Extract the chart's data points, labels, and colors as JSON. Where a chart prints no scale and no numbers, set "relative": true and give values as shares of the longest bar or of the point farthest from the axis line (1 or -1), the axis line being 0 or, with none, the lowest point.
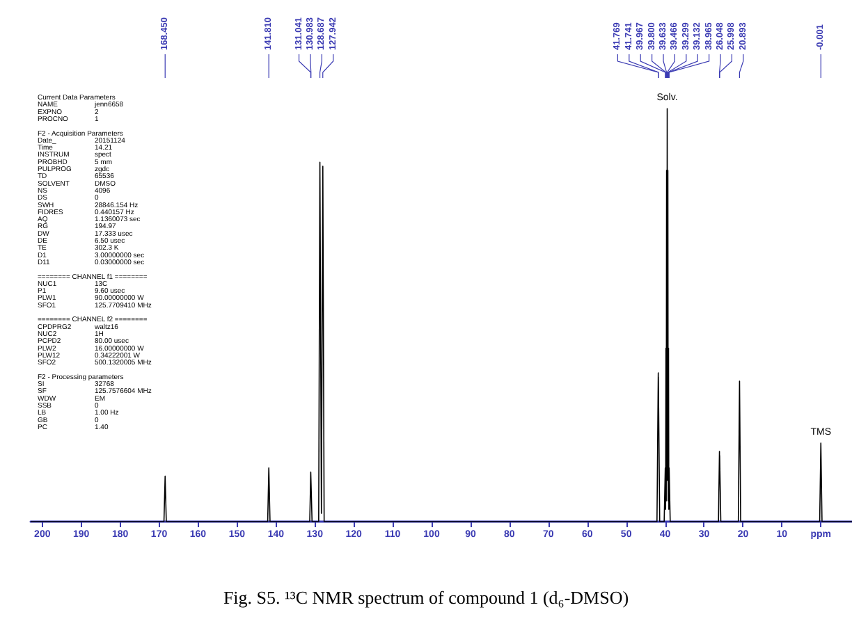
{
  "chart_data": {
    "type": "line",
    "title": "Fig. S5. ¹³C NMR spectrum of compound 1 (d₆-DMSO)",
    "relative": true,
    "color": "#000000",
    "grid": false,
    "marker": "none",
    "tick_labels": "x",
    "xlim": [
      203,
      -8
    ],
    "xticks": [
      200,
      190,
      180,
      170,
      160,
      150,
      140,
      130,
      120,
      110,
      100,
      90,
      80,
      70,
      60,
      50,
      40,
      30,
      20,
      10,
      {
        "value": 0,
        "label": "ppm"
      }
    ],
    "x": [
      203,
      168.75,
      168.45,
      168.15,
      142.1,
      141.81,
      141.5,
      131.3,
      131.04,
      130.98,
      130.7,
      129.0,
      128.69,
      128.3,
      127.94,
      127.6,
      42.1,
      41.77,
      41.755,
      41.74,
      41.4,
      40.25,
      39.97,
      39.88,
      39.8,
      39.72,
      39.63,
      39.55,
      39.47,
      39.38,
      39.3,
      39.22,
      39.13,
      39.05,
      38.97,
      38.7,
      26.3,
      26.05,
      26.02,
      26.0,
      25.7,
      21.2,
      20.89,
      20.6,
      0.3,
      0,
      -0.3,
      -8
    ],
    "values": [
      0,
      0,
      0.11,
      0,
      0,
      0.13,
      0,
      0,
      0.12,
      0.12,
      0,
      0,
      0.87,
      0.02,
      0.86,
      0,
      0,
      0.36,
      0.3,
      0.35,
      0,
      0,
      0.13,
      0.03,
      0.42,
      0.05,
      0.85,
      0.1,
      1,
      0.1,
      0.85,
      0.05,
      0.42,
      0.03,
      0.13,
      0,
      0,
      0.17,
      0.1,
      0.16,
      0,
      0,
      0.34,
      0,
      0,
      0.19,
      0,
      0
    ],
    "annotations": [
      "Current Data Parameters\nNAME  jenn6658\nEXPNO  2\nPROCNO  1\n\nF2 - Acquisition Parameters\nDate_  20151124\nTime  14.21\nINSTRUM  spect\nPROBHD  5 mm\nPULPROG  zgdc\nTD  65536\nSOLVENT  DMSO\nNS  4096\nDS  0\nSWH  28846.154 Hz\nFIDRES  0.440157 Hz\nAQ  1.1360073 sec\nRG  194.97\nDW  17.333 usec\nDE  6.50 usec\nTE  302.3 K\nD1  3.00000000 sec\nD11  0.03000000 sec\n\n======== CHANNEL f1 ========\nNUC1  13C\nP1  9.60 usec\nPLW1  90.00000000 W\nSFO1  125.7709410 MHz\n\n======== CHANNEL f2 ========\nCPDPRG2  waltz16\nNUC2  1H\nPCPD2  80.00 usec\nPLW2  16.00000000 W\nPLW12  0.34222001 W\nSFO2  500.1320005 MHz\n\nF2 - Processing parameters\nSI  32768\nSF  125.7576604 MHz\nWDW  EM\nSSB  0\nLB  1.00 Hz\nGB  0\nPC  1.40",
      {
        "text": "Solv.",
        "x": 39.47,
        "y": 1
      },
      {
        "text": "TMS",
        "x": 0,
        "y": 0.19
      },
      {
        "text": "168.450",
        "x": 168.45
      },
      {
        "text": "141.810",
        "x": 141.81
      },
      {
        "text": "131.041",
        "x": 131.041
      },
      {
        "text": "130.983",
        "x": 130.983
      },
      {
        "text": "128.687",
        "x": 128.687
      },
      {
        "text": "127.942",
        "x": 127.942
      },
      {
        "text": "41.769",
        "x": 41.769
      },
      {
        "text": "41.741",
        "x": 41.741
      },
      {
        "text": "39.967",
        "x": 39.967
      },
      {
        "text": "39.800",
        "x": 39.8
      },
      {
        "text": "39.633",
        "x": 39.633
      },
      {
        "text": "39.466",
        "x": 39.466
      },
      {
        "text": "39.299",
        "x": 39.299
      },
      {
        "text": "39.132",
        "x": 39.132
      },
      {
        "text": "38.965",
        "x": 38.965
      },
      {
        "text": "26.048",
        "x": 26.048
      },
      {
        "text": "25.998",
        "x": 25.998
      },
      {
        "text": "20.893",
        "x": 20.893
      },
      {
        "text": "-0.001",
        "x": -0.001
      }
    ]
  }
}
